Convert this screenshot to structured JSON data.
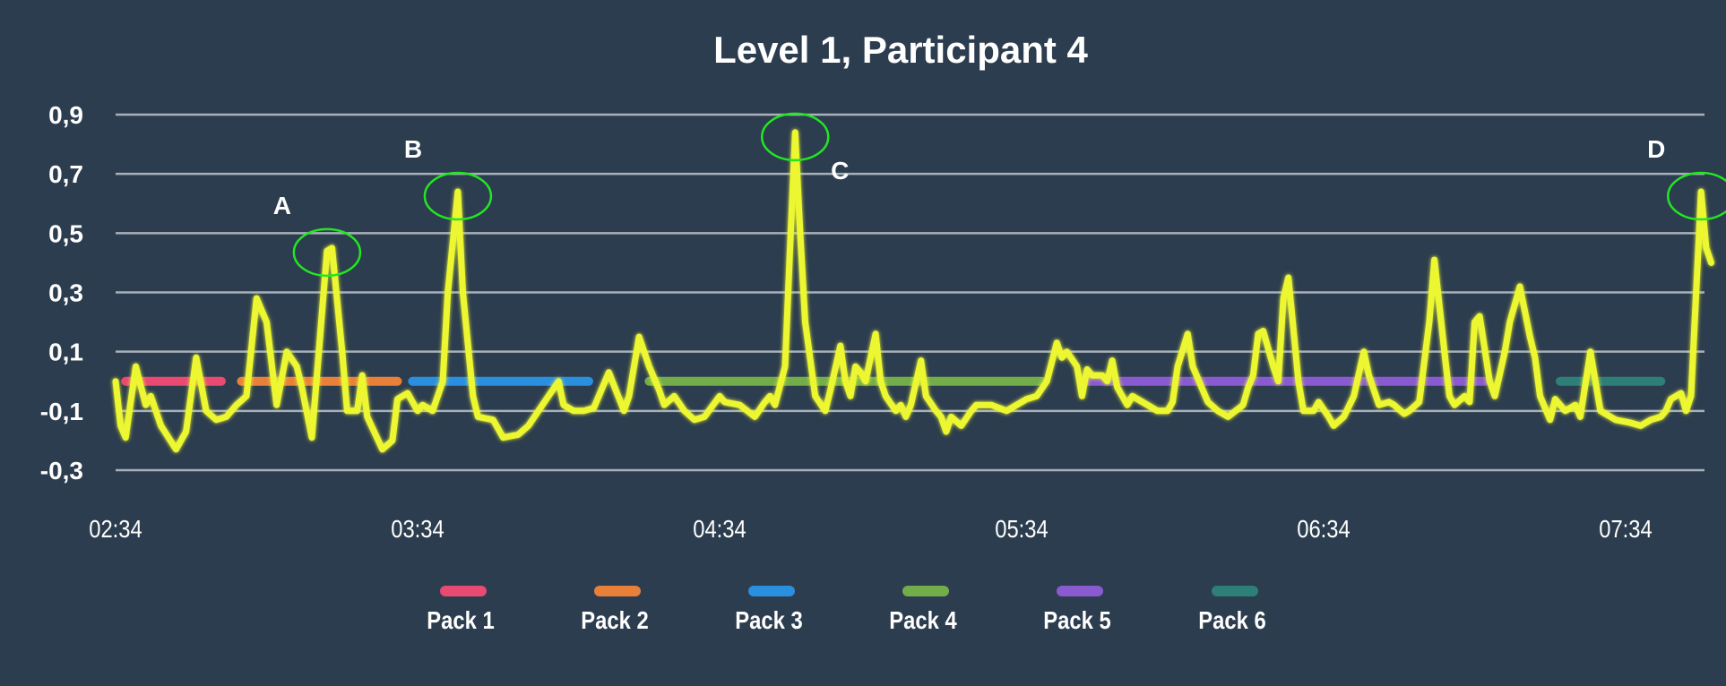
{
  "chart_data": {
    "type": "line",
    "title": "Level 1, Participant 4",
    "xlabel": "",
    "ylabel": "",
    "x_ticks": [
      "02:34",
      "03:34",
      "04:34",
      "05:34",
      "06:34",
      "07:34"
    ],
    "xlim": [
      "02:34",
      "07:51"
    ],
    "y_ticks": [
      0.9,
      0.7,
      0.5,
      0.3,
      0.1,
      -0.1,
      -0.3
    ],
    "y_tick_labels": [
      "0,9",
      "0,7",
      "0,5",
      "0,3",
      "0,1",
      "-0,1",
      "-0,3"
    ],
    "ylim": [
      -0.3,
      0.9
    ],
    "grid": "horizontal",
    "legend_placement": "bottom",
    "colors": {
      "background": "#2c3d4f",
      "line": "#ecf733",
      "grid": "#a9b0b8",
      "annotation_circle": "#22e622"
    },
    "series": [
      {
        "x": [
          "02:34",
          "02:35",
          "02:36",
          "02:38",
          "02:40",
          "02:41",
          "02:43",
          "02:46",
          "02:48",
          "02:50",
          "02:52",
          "02:54",
          "02:56",
          "02:58",
          "03:00",
          "03:02",
          "03:04",
          "03:06",
          "03:08",
          "03:10",
          "03:11",
          "03:13",
          "03:16",
          "03:17",
          "03:19",
          "03:20",
          "03:22",
          "03:23",
          "03:24",
          "03:27",
          "03:29",
          "03:30",
          "03:32",
          "03:34",
          "03:35",
          "03:37",
          "03:39",
          "03:40",
          "03:42",
          "03:43",
          "03:45",
          "03:46",
          "03:49",
          "03:51",
          "03:54",
          "03:56",
          "03:58",
          "04:00",
          "04:02",
          "04:03",
          "04:05",
          "04:07",
          "04:09",
          "04:12",
          "04:15",
          "04:16",
          "04:18",
          "04:20",
          "04:22",
          "04:23",
          "04:25",
          "04:27",
          "04:29",
          "04:31",
          "04:34",
          "04:35",
          "04:38",
          "04:41",
          "04:43",
          "04:44",
          "04:45",
          "04:47",
          "04:48",
          "04:49",
          "04:50",
          "04:51",
          "04:53",
          "04:55",
          "04:56",
          "04:58",
          "04:59",
          "05:00",
          "05:01",
          "05:02",
          "05:03",
          "05:05",
          "05:06",
          "05:07",
          "05:09",
          "05:10",
          "05:11",
          "05:12",
          "05:14",
          "05:15",
          "05:17",
          "05:18",
          "05:19",
          "05:20",
          "05:22",
          "05:24",
          "05:25",
          "05:28",
          "05:31",
          "05:33",
          "05:35",
          "05:37",
          "05:39",
          "05:41",
          "05:42",
          "05:43",
          "05:45",
          "05:46",
          "05:47",
          "05:48",
          "05:50",
          "05:51",
          "05:52",
          "05:53",
          "05:55",
          "05:56",
          "05:59",
          "06:01",
          "06:03",
          "06:04",
          "06:05",
          "06:07",
          "06:08",
          "06:11",
          "06:13",
          "06:15",
          "06:18",
          "06:19",
          "06:20",
          "06:21",
          "06:22",
          "06:24",
          "06:25",
          "06:26",
          "06:27",
          "06:29",
          "06:30",
          "06:32",
          "06:33",
          "06:35",
          "06:36",
          "06:38",
          "06:40",
          "06:42",
          "06:43",
          "06:45",
          "06:47",
          "06:48",
          "06:50",
          "06:51",
          "06:53",
          "06:55",
          "06:56",
          "06:58",
          "06:59",
          "07:00",
          "07:02",
          "07:03",
          "07:04",
          "07:05",
          "07:07",
          "07:08",
          "07:10",
          "07:11",
          "07:13",
          "07:15",
          "07:16",
          "07:17",
          "07:19",
          "07:20",
          "07:22",
          "07:24",
          "07:25",
          "07:27",
          "07:28",
          "07:29",
          "07:31",
          "07:32",
          "07:35",
          "07:37",
          "07:39",
          "07:41",
          "07:42",
          "07:43",
          "07:45",
          "07:46",
          "07:47",
          "07:49",
          "07:50",
          "07:51"
        ],
        "y": [
          0.0,
          -0.15,
          -0.19,
          0.05,
          -0.08,
          -0.05,
          -0.15,
          -0.23,
          -0.17,
          0.08,
          -0.1,
          -0.13,
          -0.12,
          -0.08,
          -0.05,
          0.28,
          0.2,
          -0.08,
          0.1,
          0.05,
          -0.02,
          -0.19,
          0.44,
          0.45,
          0.1,
          -0.1,
          -0.1,
          0.02,
          -0.12,
          -0.23,
          -0.2,
          -0.06,
          -0.04,
          -0.1,
          -0.08,
          -0.1,
          0.0,
          0.3,
          0.64,
          0.3,
          -0.05,
          -0.12,
          -0.13,
          -0.19,
          -0.18,
          -0.15,
          -0.1,
          -0.05,
          0.0,
          -0.08,
          -0.1,
          -0.1,
          -0.09,
          0.03,
          -0.1,
          -0.05,
          0.15,
          0.05,
          -0.03,
          -0.08,
          -0.05,
          -0.1,
          -0.13,
          -0.12,
          -0.05,
          -0.07,
          -0.08,
          -0.12,
          -0.07,
          -0.05,
          -0.08,
          0.05,
          0.45,
          0.84,
          0.5,
          0.2,
          -0.05,
          -0.1,
          -0.03,
          0.12,
          0.0,
          -0.05,
          0.05,
          0.03,
          0.0,
          0.16,
          0.0,
          -0.05,
          -0.1,
          -0.08,
          -0.12,
          -0.08,
          0.07,
          -0.05,
          -0.1,
          -0.12,
          -0.17,
          -0.12,
          -0.15,
          -0.1,
          -0.08,
          -0.08,
          -0.1,
          -0.08,
          -0.06,
          -0.05,
          0.0,
          0.13,
          0.08,
          0.1,
          0.05,
          -0.05,
          0.04,
          0.02,
          0.02,
          0.0,
          0.07,
          -0.02,
          -0.08,
          -0.05,
          -0.08,
          -0.1,
          -0.1,
          -0.07,
          0.05,
          0.16,
          0.05,
          -0.07,
          -0.1,
          -0.12,
          -0.08,
          -0.02,
          0.02,
          0.16,
          0.17,
          0.05,
          0.0,
          0.28,
          0.35,
          0.0,
          -0.1,
          -0.1,
          -0.07,
          -0.12,
          -0.15,
          -0.12,
          -0.05,
          0.1,
          0.02,
          -0.08,
          -0.07,
          -0.08,
          -0.11,
          -0.1,
          -0.07,
          0.2,
          0.41,
          0.1,
          -0.05,
          -0.08,
          -0.05,
          -0.07,
          0.2,
          0.22,
          0.0,
          -0.05,
          0.1,
          0.2,
          0.32,
          0.15,
          0.08,
          -0.05,
          -0.13,
          -0.06,
          -0.1,
          -0.08,
          -0.12,
          0.1,
          0.0,
          -0.1,
          -0.12,
          -0.13,
          -0.14,
          -0.15,
          -0.13,
          -0.12,
          -0.1,
          -0.06,
          -0.04,
          -0.1,
          -0.05,
          0.64,
          0.45,
          0.4
        ]
      }
    ],
    "packs": [
      {
        "name": "Pack 1",
        "start": "02:36",
        "end": "02:55",
        "color": "#e84a72"
      },
      {
        "name": "Pack 2",
        "start": "02:59",
        "end": "03:30",
        "color": "#e8803a"
      },
      {
        "name": "Pack 3",
        "start": "03:33",
        "end": "04:08",
        "color": "#2b8fe0"
      },
      {
        "name": "Pack 4",
        "start": "04:20",
        "end": "05:38",
        "color": "#72ad4a"
      },
      {
        "name": "Pack 5",
        "start": "05:47",
        "end": "07:06",
        "color": "#8a5ad0"
      },
      {
        "name": "Pack 6",
        "start": "07:21",
        "end": "07:41",
        "color": "#2e7f78"
      }
    ],
    "pack_level": 0,
    "annotations": [
      {
        "label": "A",
        "x": "03:16",
        "y": 0.45,
        "label_side": "upper-left"
      },
      {
        "label": "B",
        "x": "03:42",
        "y": 0.64,
        "label_side": "upper-left"
      },
      {
        "label": "C",
        "x": "04:49",
        "y": 0.84,
        "label_side": "lower-right"
      },
      {
        "label": "D",
        "x": "07:49",
        "y": 0.64,
        "label_side": "upper-left"
      }
    ]
  }
}
